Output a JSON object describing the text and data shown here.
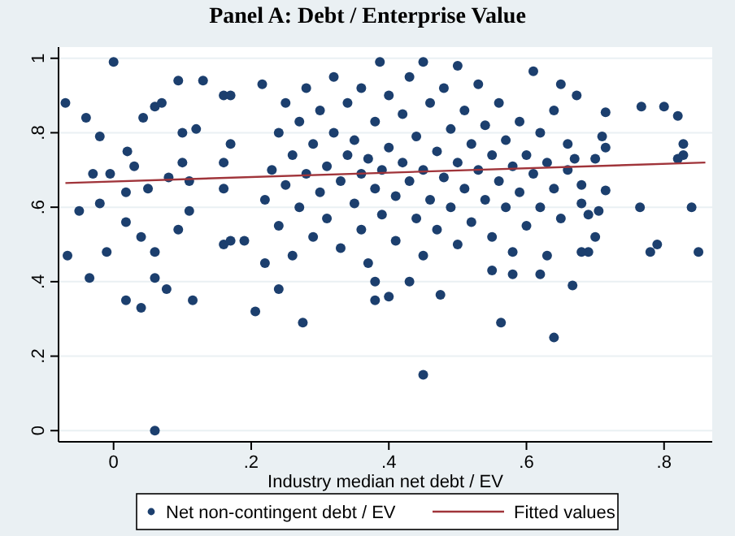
{
  "chart_data": {
    "type": "scatter",
    "title": "Panel A: Debt / Enterprise Value",
    "xlabel": "Industry median net debt / EV",
    "xlim": [
      -0.08,
      0.87
    ],
    "ylim": [
      -0.03,
      1.03
    ],
    "xticks": [
      0,
      {
        "value": 0.2,
        "label": ".2"
      },
      {
        "value": 0.4,
        "label": ".4"
      },
      {
        "value": 0.6,
        "label": ".6"
      },
      {
        "value": 0.8,
        "label": ".8"
      }
    ],
    "yticks": [
      0,
      {
        "value": 0.2,
        "label": ".2"
      },
      {
        "value": 0.4,
        "label": ".4"
      },
      {
        "value": 0.6,
        "label": ".6"
      },
      {
        "value": 0.8,
        "label": ".8"
      },
      1
    ],
    "grid": "y",
    "legend": "bottom",
    "series": [
      {
        "name": "Net non-contingent debt / EV",
        "marker": "circle",
        "color": "#1c3f6e",
        "x": [
          -0.07,
          -0.067,
          0,
          -0.05,
          -0.04,
          -0.035,
          -0.01,
          -0.02,
          -0.03,
          -0.02,
          -0.005,
          0.018,
          0.04,
          0.06,
          0.06,
          0.06,
          0.077,
          0.043,
          0.06,
          0.07,
          0.094,
          0.13,
          0.115,
          0.094,
          0.02,
          0.018,
          0.03,
          0.05,
          0.04,
          0.018,
          0.08,
          0.1,
          0.1,
          0.11,
          0.11,
          0.12,
          0.16,
          0.17,
          0.16,
          0.17,
          0.16,
          0.16,
          0.17,
          0.206,
          0.275,
          0.19,
          0.22,
          0.216,
          0.24,
          0.387,
          0.45,
          0.5,
          0.45,
          0.475,
          0.563,
          0.64,
          0.667,
          0.61,
          0.65,
          0.673,
          0.715,
          0.767,
          0.8,
          0.82,
          0.828,
          0.71,
          0.715,
          0.828,
          0.82,
          0.715,
          0.765,
          0.84,
          0.78,
          0.79,
          0.85,
          0.7,
          0.69,
          0.68,
          0.705,
          0.69,
          0.68,
          0.68,
          0.7,
          0.67,
          0.66,
          0.63,
          0.62,
          0.58,
          0.55,
          0.43,
          0.4,
          0.38,
          0.38,
          0.22,
          0.23,
          0.24,
          0.24,
          0.25,
          0.25,
          0.26,
          0.26,
          0.27,
          0.27,
          0.28,
          0.28,
          0.29,
          0.29,
          0.3,
          0.3,
          0.31,
          0.31,
          0.32,
          0.32,
          0.33,
          0.33,
          0.34,
          0.34,
          0.35,
          0.35,
          0.36,
          0.36,
          0.36,
          0.37,
          0.37,
          0.38,
          0.38,
          0.39,
          0.39,
          0.4,
          0.4,
          0.41,
          0.41,
          0.42,
          0.42,
          0.43,
          0.43,
          0.44,
          0.44,
          0.45,
          0.45,
          0.46,
          0.46,
          0.47,
          0.47,
          0.48,
          0.48,
          0.49,
          0.49,
          0.5,
          0.5,
          0.51,
          0.51,
          0.52,
          0.52,
          0.53,
          0.53,
          0.54,
          0.54,
          0.55,
          0.55,
          0.56,
          0.56,
          0.57,
          0.57,
          0.58,
          0.58,
          0.59,
          0.59,
          0.6,
          0.6,
          0.61,
          0.62,
          0.62,
          0.63,
          0.64,
          0.64,
          0.65,
          0.66
        ],
        "values": [
          0.88,
          0.47,
          0.99,
          0.59,
          0.84,
          0.41,
          0.48,
          0.79,
          0.69,
          0.61,
          0.69,
          0.35,
          0.33,
          0,
          0.41,
          0.48,
          0.38,
          0.84,
          0.87,
          0.88,
          0.94,
          0.94,
          0.35,
          0.54,
          0.75,
          0.64,
          0.71,
          0.65,
          0.52,
          0.56,
          0.68,
          0.72,
          0.8,
          0.59,
          0.67,
          0.81,
          0.9,
          0.9,
          0.5,
          0.51,
          0.65,
          0.72,
          0.77,
          0.32,
          0.29,
          0.51,
          0.45,
          0.93,
          0.38,
          0.99,
          0.99,
          0.98,
          0.15,
          0.365,
          0.29,
          0.25,
          0.39,
          0.965,
          0.93,
          0.9,
          0.855,
          0.87,
          0.87,
          0.845,
          0.77,
          0.79,
          0.76,
          0.74,
          0.73,
          0.645,
          0.6,
          0.6,
          0.48,
          0.5,
          0.48,
          0.52,
          0.48,
          0.48,
          0.59,
          0.58,
          0.61,
          0.66,
          0.73,
          0.73,
          0.77,
          0.47,
          0.42,
          0.42,
          0.43,
          0.4,
          0.36,
          0.35,
          0.4,
          0.62,
          0.7,
          0.8,
          0.55,
          0.66,
          0.88,
          0.74,
          0.47,
          0.6,
          0.83,
          0.69,
          0.92,
          0.52,
          0.77,
          0.64,
          0.86,
          0.71,
          0.57,
          0.95,
          0.8,
          0.67,
          0.49,
          0.74,
          0.88,
          0.61,
          0.78,
          0.69,
          0.54,
          0.92,
          0.73,
          0.45,
          0.65,
          0.83,
          0.7,
          0.58,
          0.76,
          0.9,
          0.63,
          0.51,
          0.72,
          0.85,
          0.67,
          0.95,
          0.57,
          0.79,
          0.7,
          0.47,
          0.88,
          0.62,
          0.75,
          0.54,
          0.68,
          0.92,
          0.81,
          0.6,
          0.72,
          0.5,
          0.86,
          0.65,
          0.77,
          0.56,
          0.7,
          0.93,
          0.62,
          0.82,
          0.74,
          0.52,
          0.67,
          0.88,
          0.6,
          0.78,
          0.71,
          0.48,
          0.83,
          0.64,
          0.74,
          0.55,
          0.69,
          0.8,
          0.6,
          0.72,
          0.65,
          0.86,
          0.57,
          0.7
        ]
      },
      {
        "name": "Fitted values",
        "type": "line",
        "color": "#a0343a",
        "x": [
          -0.07,
          0.86
        ],
        "values": [
          0.665,
          0.72
        ]
      }
    ]
  }
}
